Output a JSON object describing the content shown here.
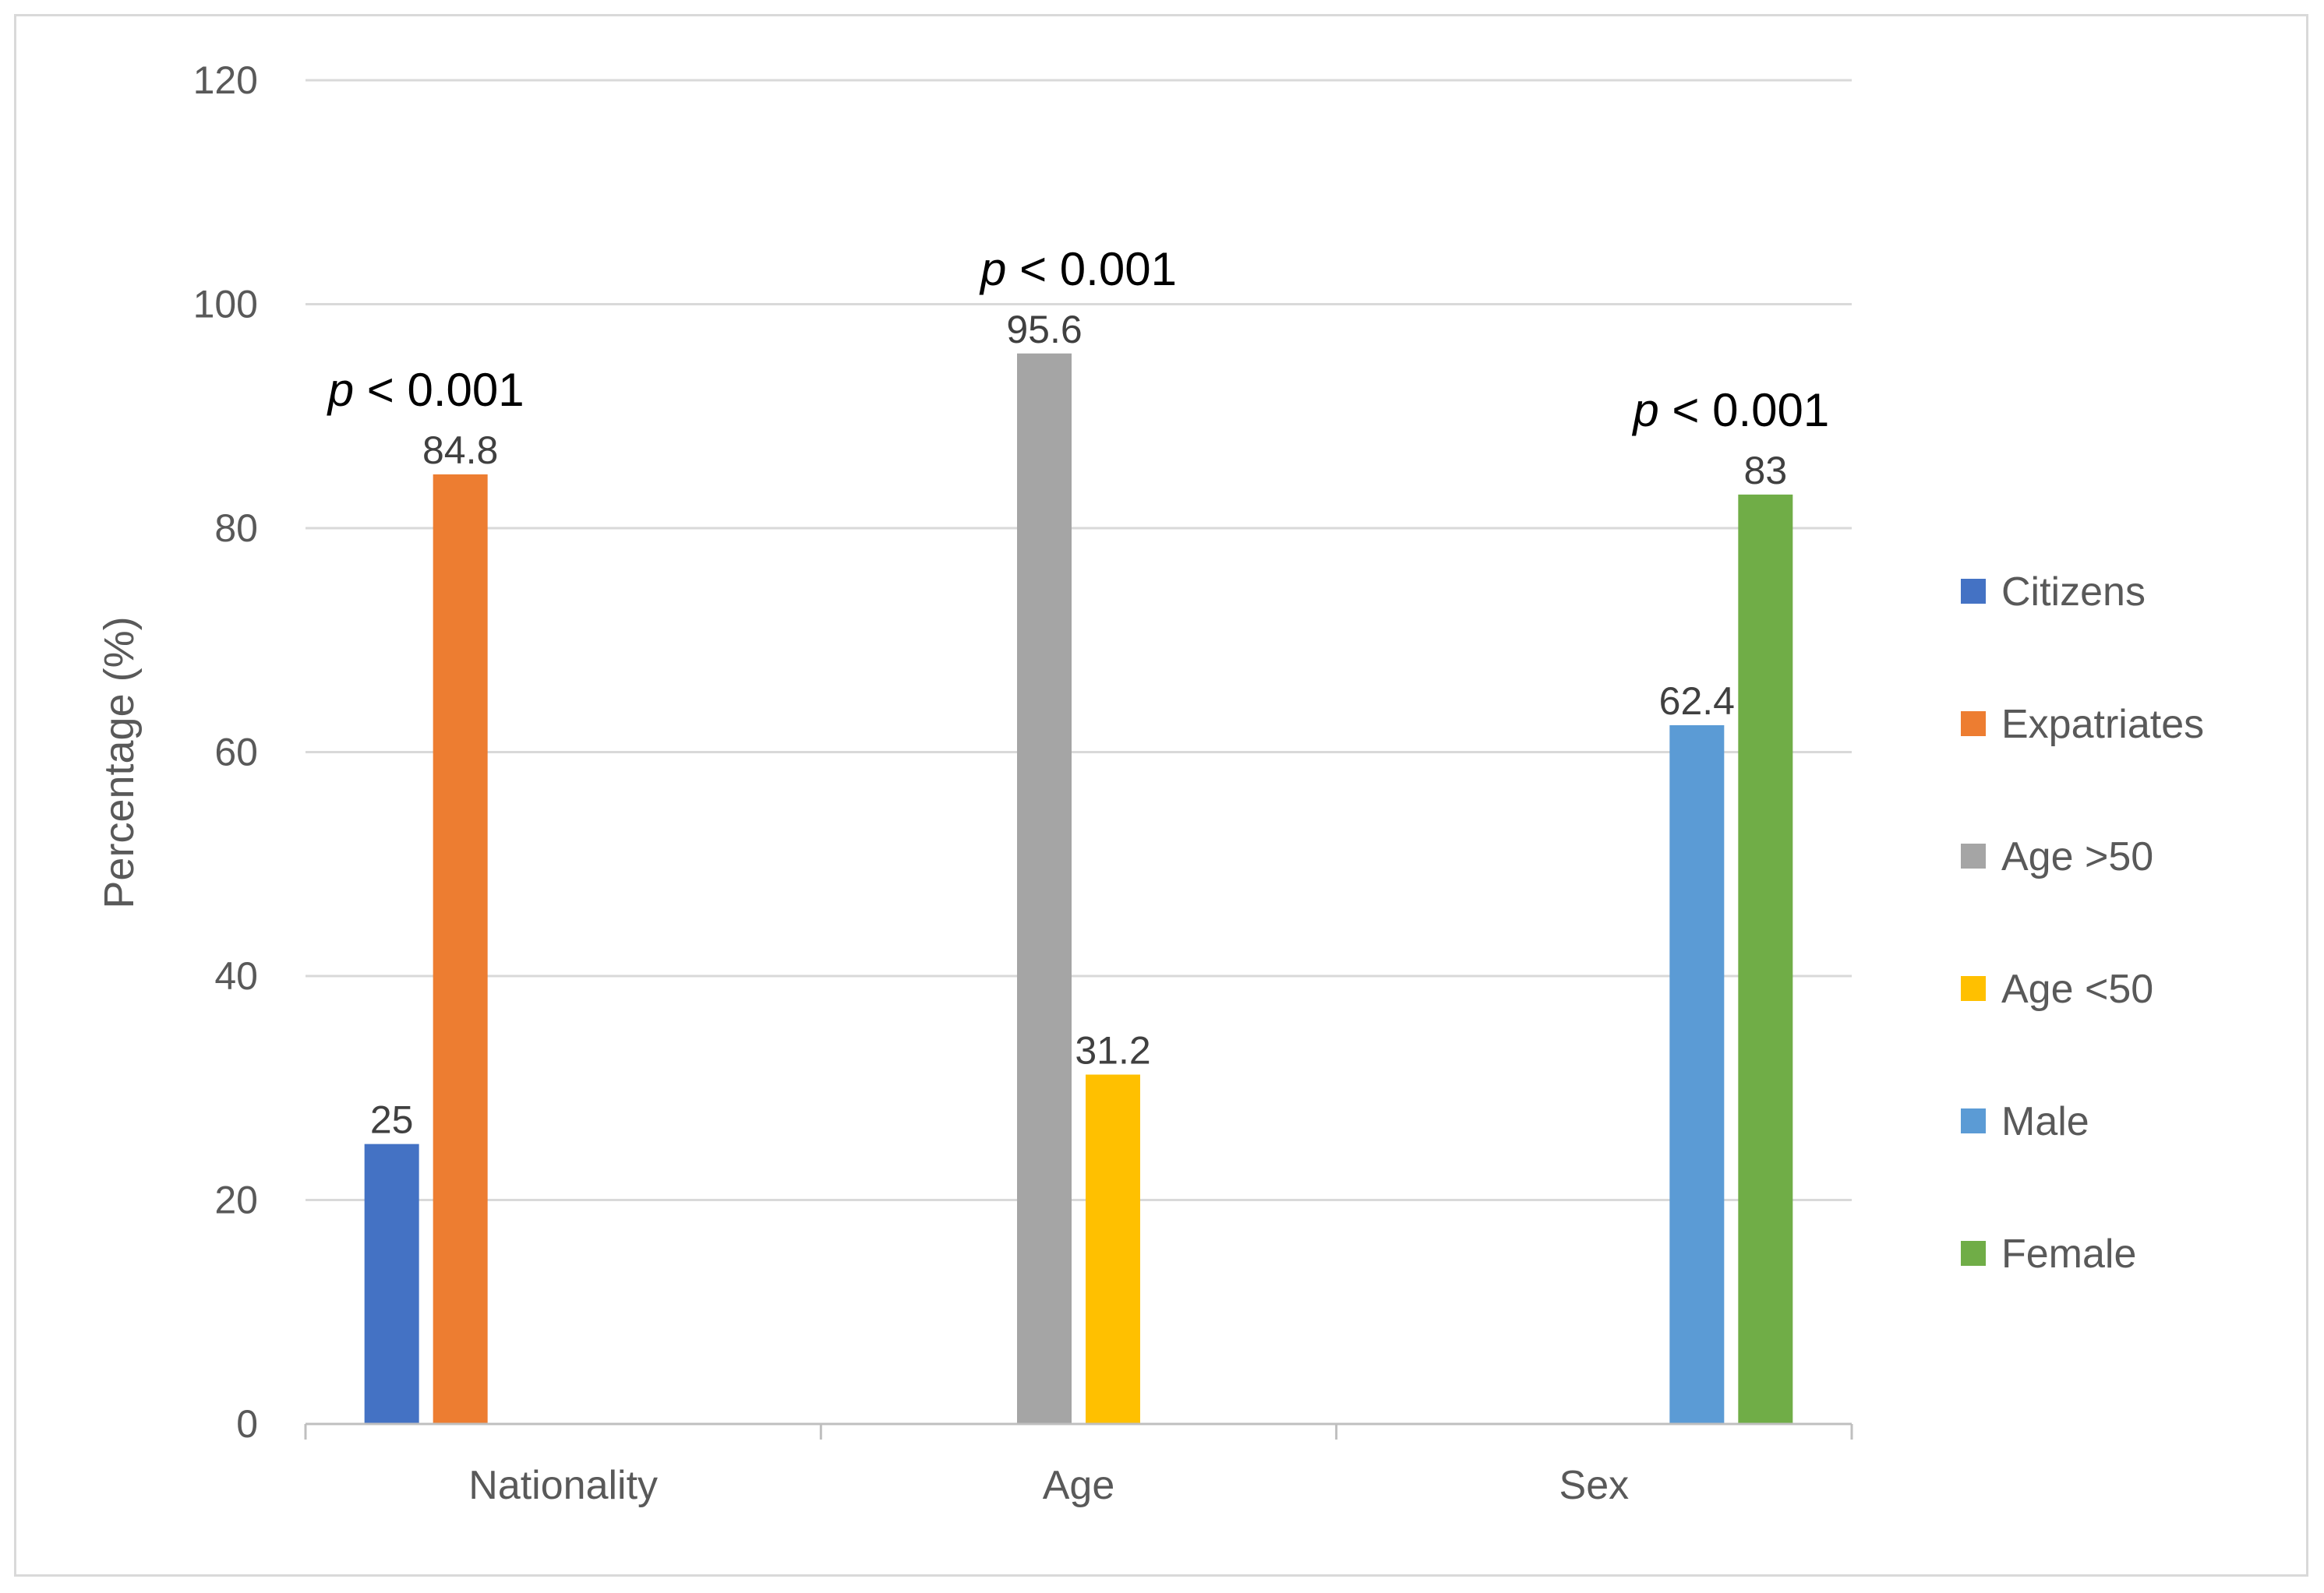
{
  "chart_data": {
    "type": "bar",
    "title": "",
    "xlabel": "",
    "ylabel": "Percentage (%)",
    "ylim": [
      0,
      120
    ],
    "yticks": [
      0,
      20,
      40,
      60,
      80,
      100,
      120
    ],
    "grid": true,
    "legend_position": "right",
    "categories": [
      "Nationality",
      "Age",
      "Sex"
    ],
    "series": [
      {
        "name": "Citizens",
        "color": "#4472C4",
        "category": "Nationality",
        "value": 25,
        "label": "25"
      },
      {
        "name": "Expatriates",
        "color": "#ED7D31",
        "category": "Nationality",
        "value": 84.8,
        "label": "84.8"
      },
      {
        "name": "Age >50",
        "color": "#A5A5A5",
        "category": "Age",
        "value": 95.6,
        "label": "95.6"
      },
      {
        "name": "Age <50",
        "color": "#FFC000",
        "category": "Age",
        "value": 31.2,
        "label": "31.2"
      },
      {
        "name": "Male",
        "color": "#5B9BD5",
        "category": "Sex",
        "value": 62.4,
        "label": "62.4"
      },
      {
        "name": "Female",
        "color": "#70AD47",
        "category": "Sex",
        "value": 83,
        "label": "83"
      }
    ],
    "annotations": [
      {
        "category": "Nationality",
        "p": "p",
        "rest": " < 0.001",
        "anchor_value": 84.8
      },
      {
        "category": "Age",
        "p": "p",
        "rest": " < 0.001",
        "anchor_value": 95.6
      },
      {
        "category": "Sex",
        "p": "p",
        "rest": " < 0.001",
        "anchor_value": 83
      }
    ]
  }
}
